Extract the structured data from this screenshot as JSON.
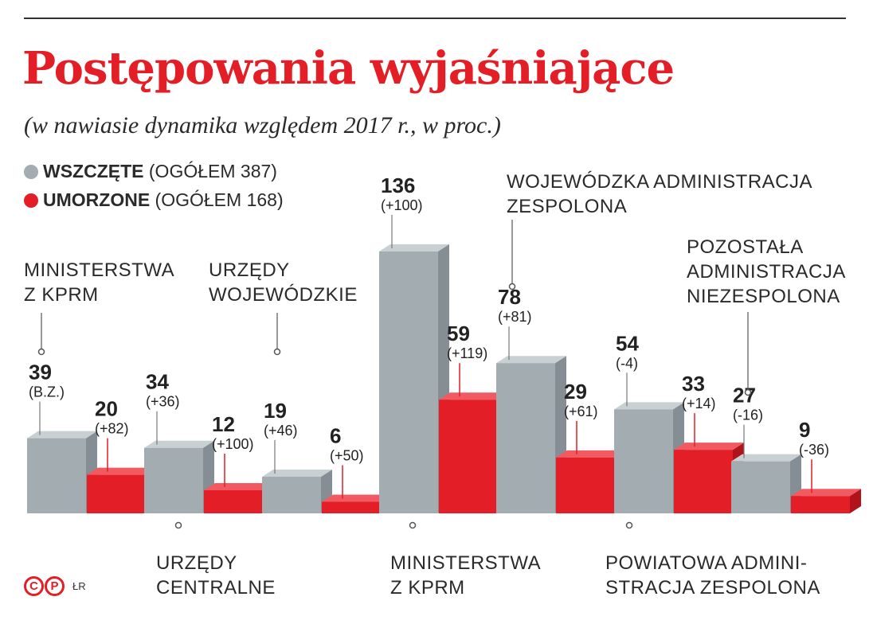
{
  "header": {
    "title": "Postępowania wyjaśniające",
    "subtitle": "(w nawiasie dynamika względem 2017 r., w proc.)"
  },
  "legend": [
    {
      "bold": "WSZCZĘTE",
      "rest": " (OGÓŁEM 387)",
      "color": "#a3acb1"
    },
    {
      "bold": "UMORZONE",
      "rest": " (OGÓŁEM 168)",
      "color": "#e41e26"
    }
  ],
  "colors": {
    "gray": "#a3acb1",
    "gray_side": "#858e94",
    "gray_top": "#c9d0d4",
    "red": "#e41e26",
    "red_side": "#b0141a",
    "red_top": "#f05a60"
  },
  "chart_data": {
    "type": "bar",
    "categories": [
      "MINISTERSTWA Z KPRM",
      "URZĘDY CENTRALNE",
      "URZĘDY WOJEWÓDZKIE",
      "MINISTERSTWA Z KPRM",
      "WOJEWÓDZKA ADMINISTRACJA ZESPOLONA",
      "POWIATOWA ADMINISTRACJA ZESPOLONA",
      "POZOSTAŁA ADMINISTRACJA NIEZESPOLONA"
    ],
    "category_label_lines": [
      [
        "MINISTERSTWA",
        "Z KPRM"
      ],
      [
        "URZĘDY",
        "CENTRALNE"
      ],
      [
        "URZĘDY",
        "WOJEWÓDZKIE"
      ],
      [
        "MINISTERSTWA",
        "Z KPRM"
      ],
      [
        "WOJEWÓDZKA ADMINISTRACJA",
        "ZESPOLONA"
      ],
      [
        "POWIATOWA ADMINI-",
        "STRACJA ZESPOLONA"
      ],
      [
        "POZOSTAŁA",
        "ADMINISTRACJA",
        "NIEZESPOLONA"
      ]
    ],
    "label_side": [
      "top",
      "bottom",
      "top",
      "bottom",
      "top",
      "bottom",
      "top"
    ],
    "series": [
      {
        "name": "WSZCZĘTE",
        "values": [
          39,
          34,
          19,
          136,
          78,
          54,
          27
        ],
        "changes": [
          "(B.Z.)",
          "(+36)",
          "(+46)",
          "(+100)",
          "(+81)",
          "(-4)",
          "(-16)"
        ]
      },
      {
        "name": "UMORZONE",
        "values": [
          20,
          12,
          6,
          59,
          29,
          33,
          9
        ],
        "changes": [
          "(+82)",
          "(+100)",
          "(+50)",
          "(+119)",
          "(+61)",
          "(+14)",
          "(-36)"
        ]
      }
    ]
  },
  "footer": {
    "logo_letters": [
      "C",
      "P"
    ],
    "author": "ŁR"
  }
}
